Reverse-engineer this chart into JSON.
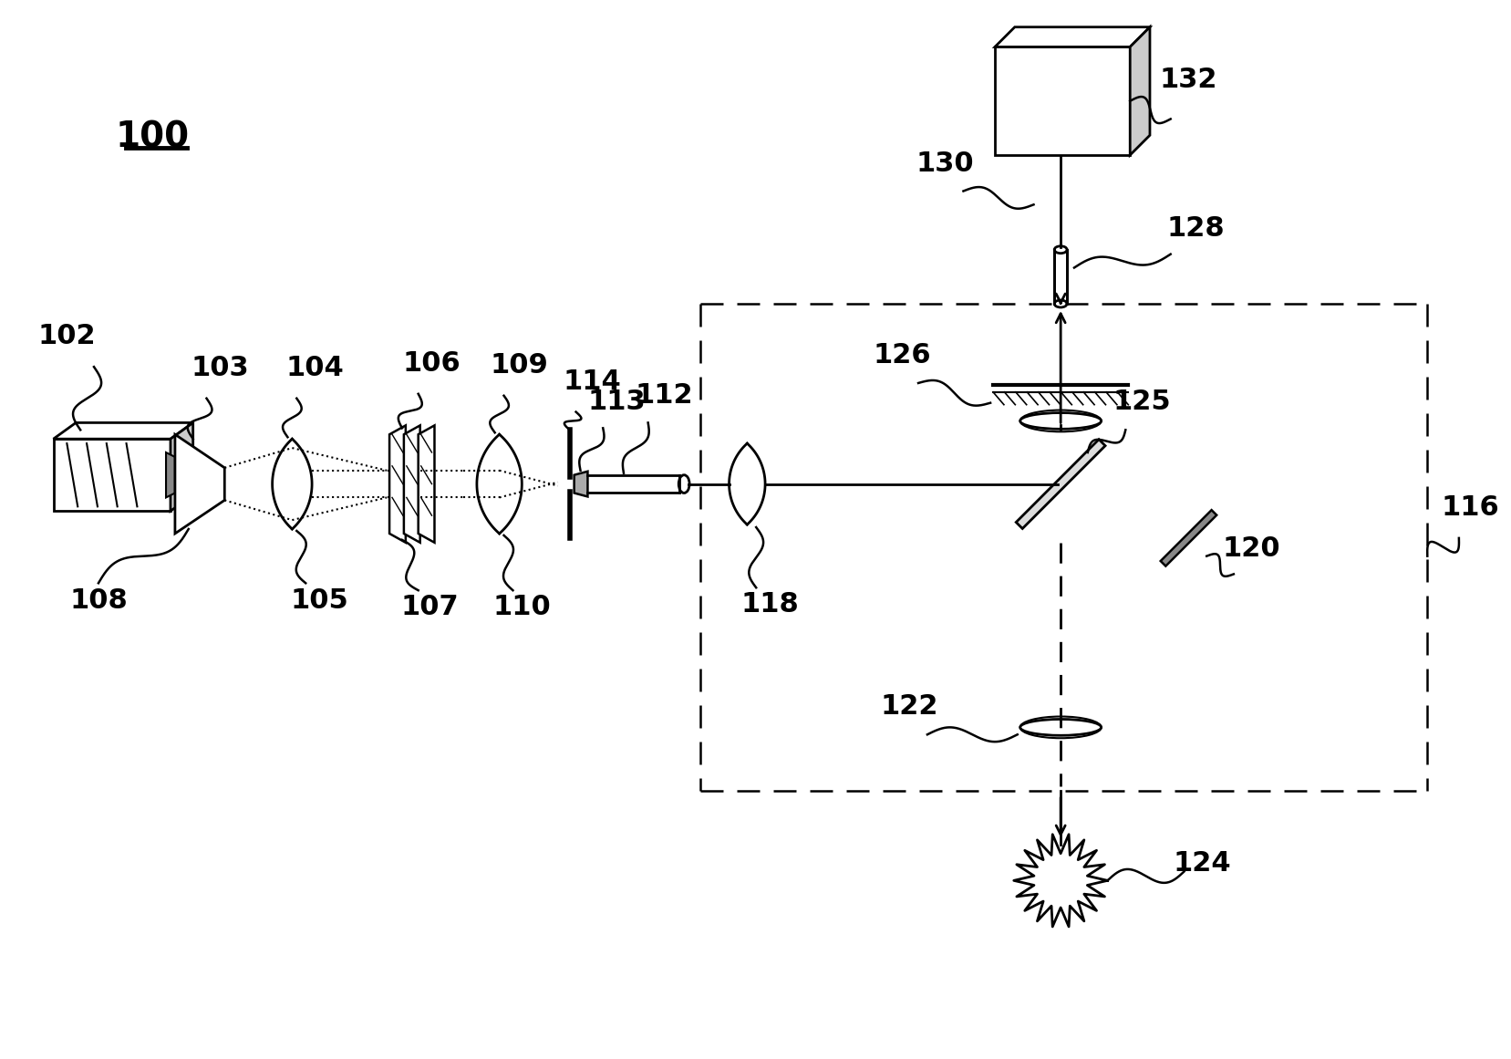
{
  "bg_color": "#ffffff",
  "lc": "#000000",
  "label_100": "100",
  "label_102": "102",
  "label_103": "103",
  "label_104": "104",
  "label_105": "105",
  "label_106": "106",
  "label_107": "107",
  "label_108": "108",
  "label_109": "109",
  "label_110": "110",
  "label_112": "112",
  "label_113": "113",
  "label_114": "114",
  "label_116": "116",
  "label_118": "118",
  "label_120": "120",
  "label_122": "122",
  "label_124": "124",
  "label_125": "125",
  "label_126": "126",
  "label_128": "128",
  "label_130": "130",
  "label_132": "132"
}
